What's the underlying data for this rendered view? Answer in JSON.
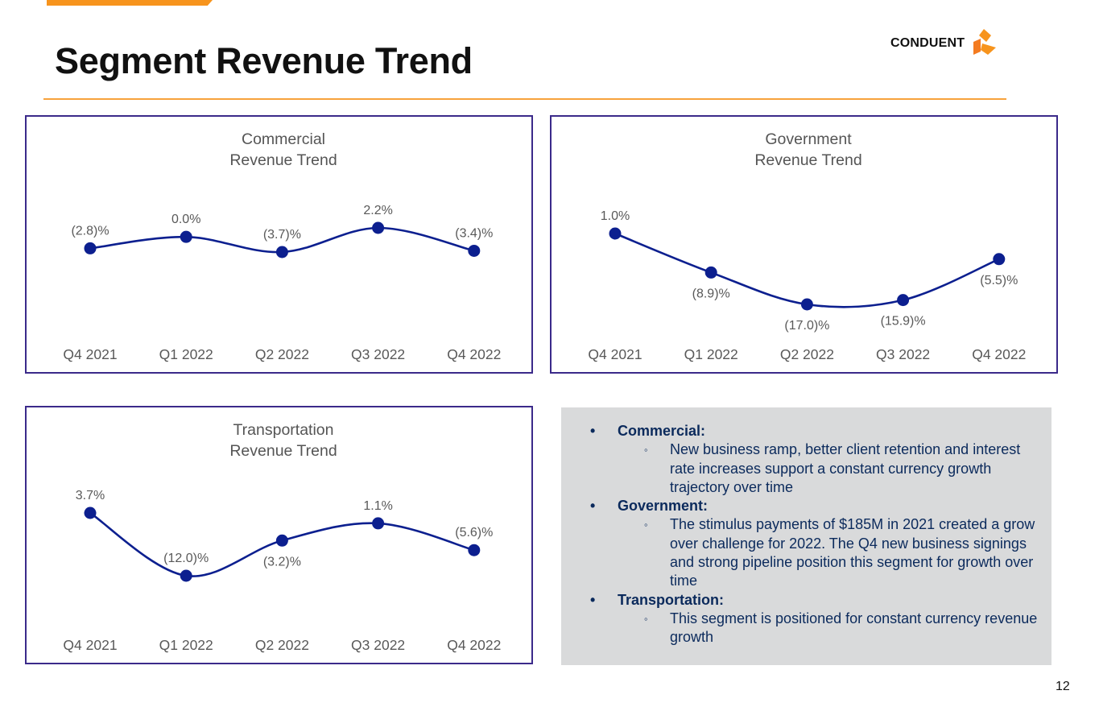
{
  "header": {
    "title": "Segment Revenue Trend",
    "logo_text": "CONDUENT",
    "logo_icon": "conduent-logo-icon",
    "accent_color": "#f7941d"
  },
  "chart_data": [
    {
      "type": "line",
      "title": "Commercial Revenue Trend",
      "title_lines": [
        "Commercial",
        "Revenue Trend"
      ],
      "categories": [
        "Q4 2021",
        "Q1 2022",
        "Q2 2022",
        "Q3 2022",
        "Q4 2022"
      ],
      "values": [
        -2.8,
        0.0,
        -3.7,
        2.2,
        -3.4
      ],
      "labels": [
        "(2.8)%",
        "0.0%",
        "(3.7)%",
        "2.2%",
        "(3.4)%"
      ],
      "label_positions": [
        "above",
        "above",
        "above",
        "above",
        "above"
      ],
      "xlabel": "",
      "ylabel": "",
      "grid": false,
      "legend": "none",
      "line_color": "#0c1f8f",
      "smooth": true
    },
    {
      "type": "line",
      "title": "Government Revenue Trend",
      "title_lines": [
        "Government",
        "Revenue Trend"
      ],
      "categories": [
        "Q4 2021",
        "Q1 2022",
        "Q2 2022",
        "Q3 2022",
        "Q4 2022"
      ],
      "values": [
        1.0,
        -8.9,
        -17.0,
        -15.9,
        -5.5
      ],
      "labels": [
        "1.0%",
        "(8.9)%",
        "(17.0)%",
        "(15.9)%",
        "(5.5)%"
      ],
      "label_positions": [
        "above",
        "below",
        "below",
        "below",
        "below"
      ],
      "xlabel": "",
      "ylabel": "",
      "grid": false,
      "legend": "none",
      "line_color": "#0c1f8f",
      "smooth": true
    },
    {
      "type": "line",
      "title": "Transportation Revenue Trend",
      "title_lines": [
        "Transportation",
        "Revenue Trend"
      ],
      "categories": [
        "Q4 2021",
        "Q1 2022",
        "Q2 2022",
        "Q3 2022",
        "Q4 2022"
      ],
      "values": [
        3.7,
        -12.0,
        -3.2,
        1.1,
        -5.6
      ],
      "labels": [
        "3.7%",
        "(12.0)%",
        "(3.2)%",
        "1.1%",
        "(5.6)%"
      ],
      "label_positions": [
        "above",
        "above",
        "below",
        "above",
        "above"
      ],
      "xlabel": "",
      "ylabel": "",
      "grid": false,
      "legend": "none",
      "line_color": "#0c1f8f",
      "smooth": true
    }
  ],
  "notes": [
    {
      "heading": "Commercial:",
      "bullets": [
        "New business ramp, better client retention and interest rate increases support a constant currency growth trajectory over time"
      ]
    },
    {
      "heading": "Government:",
      "bullets": [
        "The stimulus payments of $185M in 2021 created a grow over challenge for 2022. The Q4 new business signings and strong pipeline position this segment for growth over time"
      ]
    },
    {
      "heading": "Transportation:",
      "bullets": [
        "This segment is positioned for constant currency revenue growth"
      ]
    }
  ],
  "page_number": "12"
}
